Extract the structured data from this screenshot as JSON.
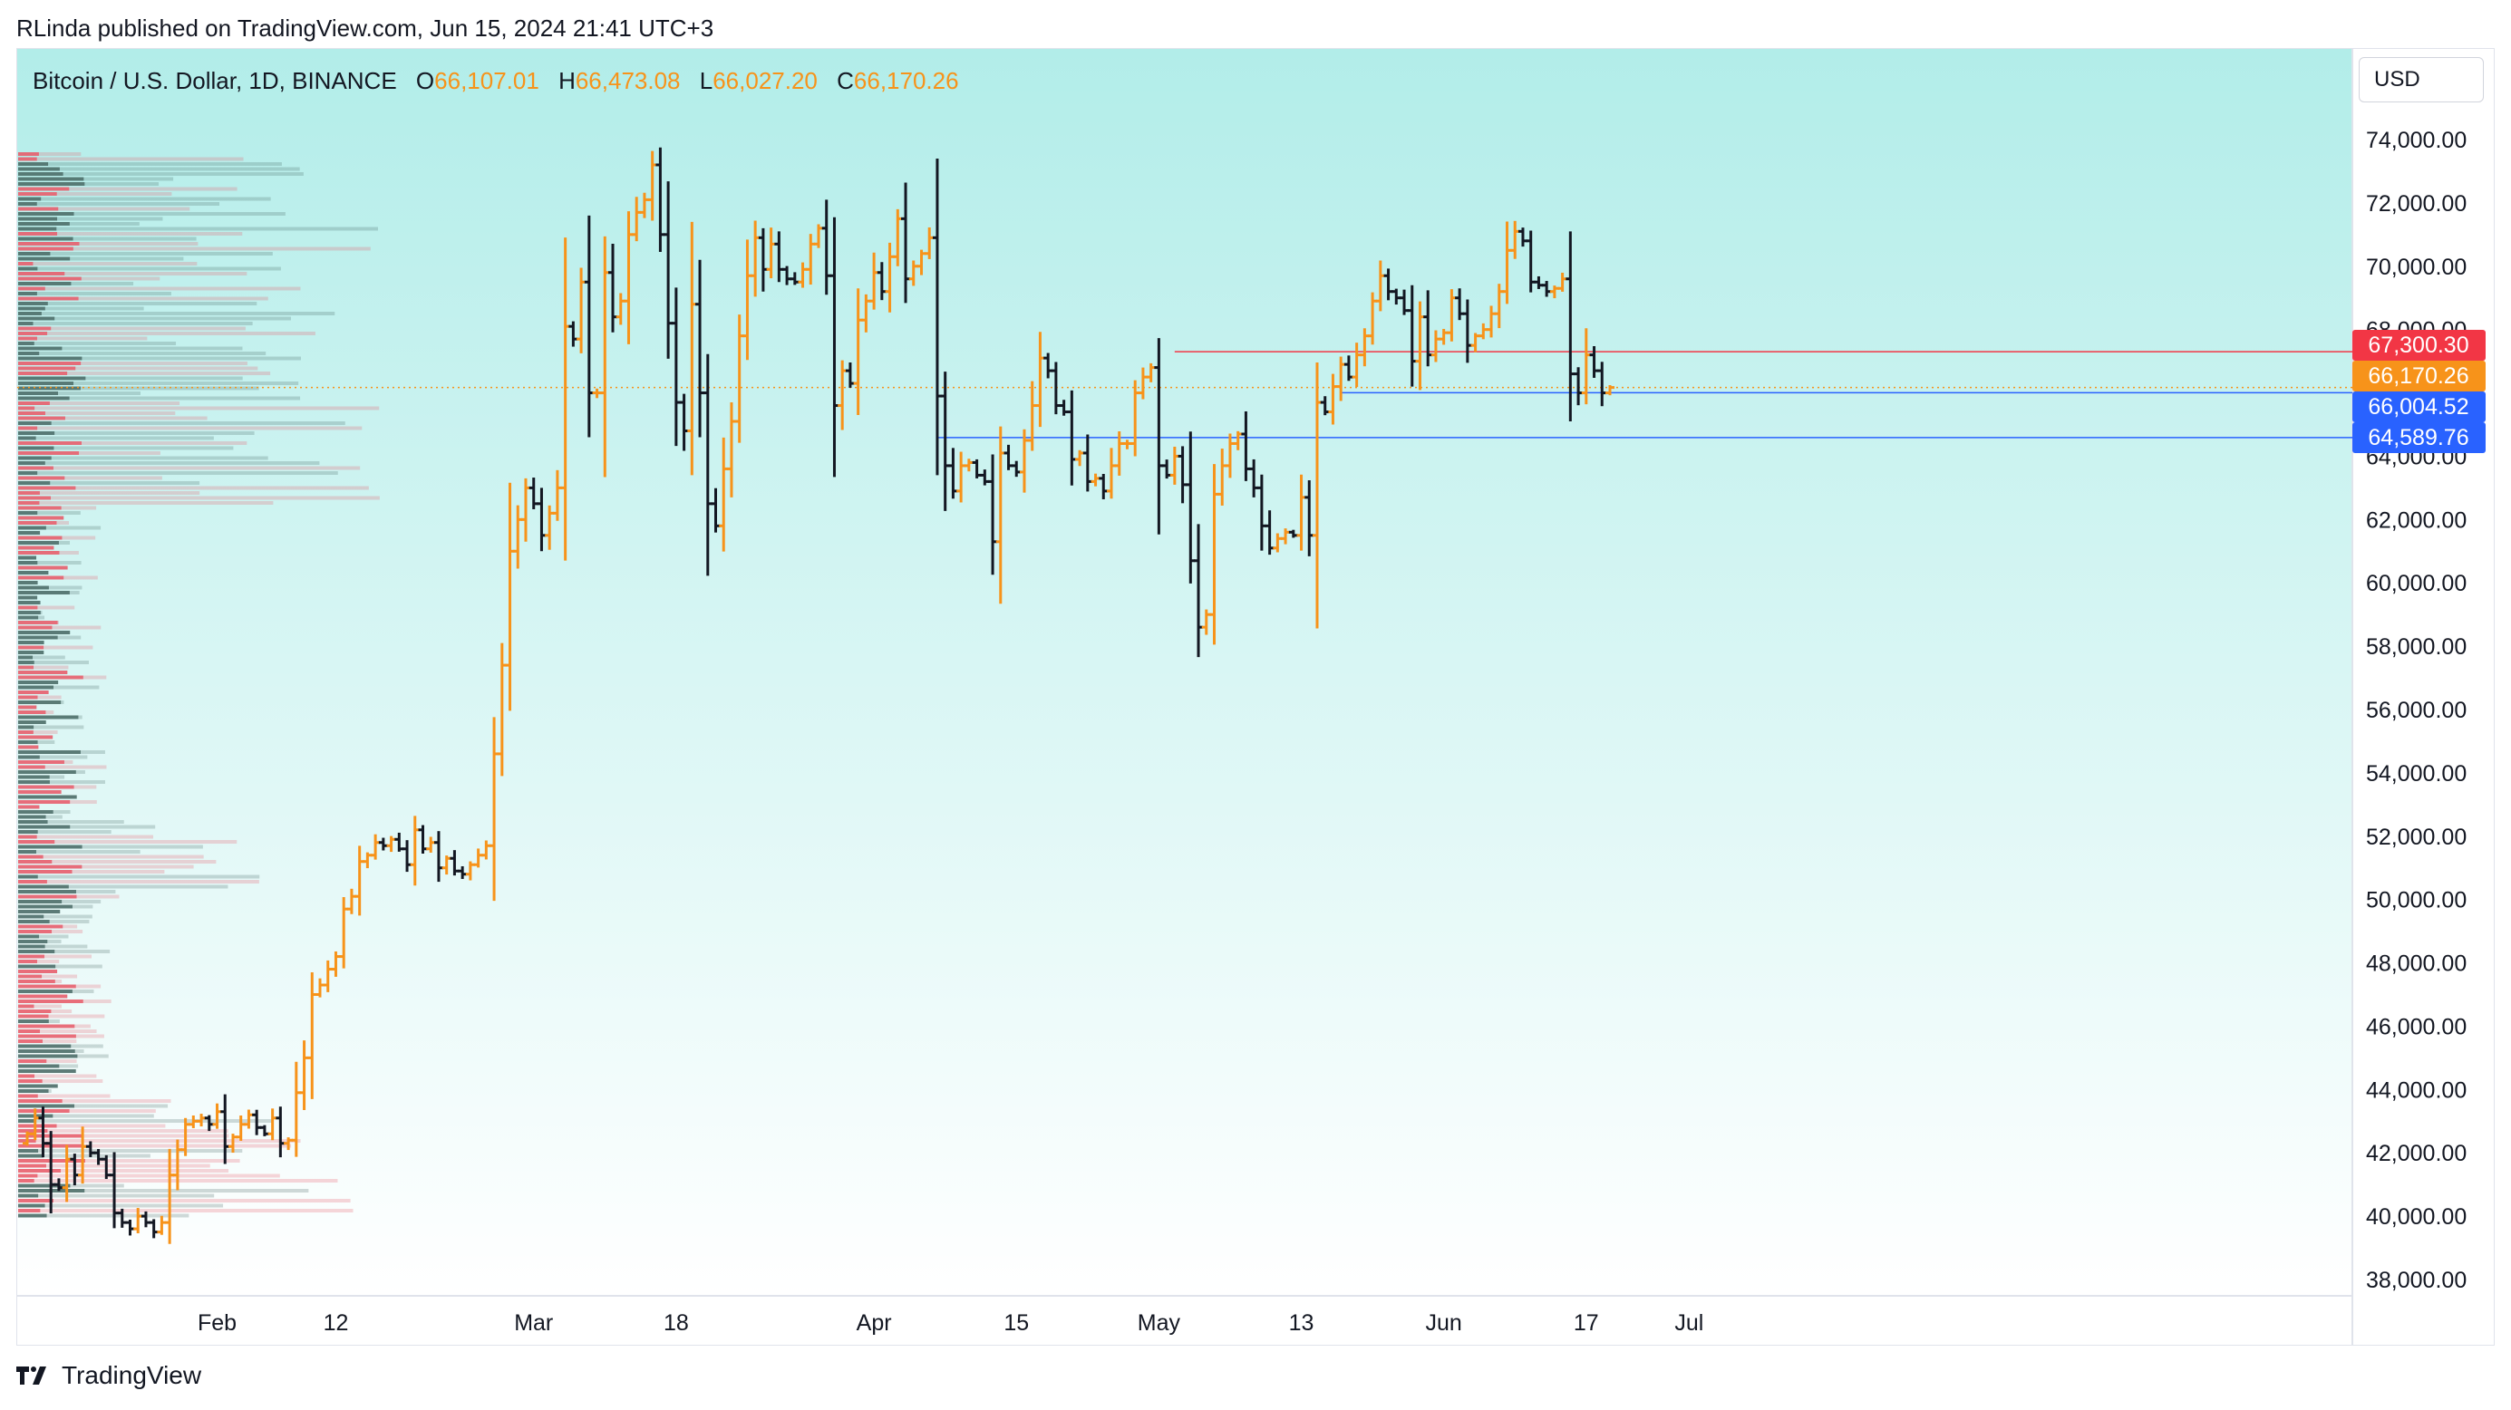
{
  "header": {
    "publisher_line": "RLinda published on TradingView.com, Jun 15, 2024 21:41 UTC+3"
  },
  "legend": {
    "symbol": "Bitcoin / U.S. Dollar, 1D, BINANCE",
    "o_label": "O",
    "o_value": "66,107.01",
    "h_label": "H",
    "h_value": "66,473.08",
    "l_label": "L",
    "l_value": "66,027.20",
    "c_label": "C",
    "c_value": "66,170.26"
  },
  "currency_button": {
    "label": "USD"
  },
  "footer": {
    "brand": "TradingView"
  },
  "colors": {
    "bull": "#f7931a",
    "bear": "#131722",
    "bg_top": "#b2ede9",
    "bg_bottom": "#ffffff",
    "red_line": "#f23645",
    "blue_line": "#2962ff",
    "volume_bear": "#4a6b66",
    "volume_bull": "#e85c6a"
  },
  "chart_data": {
    "type": "ohlc",
    "ylim": [
      36500,
      75500
    ],
    "yticks": [
      "38,000.00",
      "40,000.00",
      "42,000.00",
      "44,000.00",
      "46,000.00",
      "48,000.00",
      "50,000.00",
      "52,000.00",
      "54,000.00",
      "56,000.00",
      "58,000.00",
      "60,000.00",
      "62,000.00",
      "64,000.00",
      "66,000.00",
      "68,000.00",
      "70,000.00",
      "72,000.00",
      "74,000.00"
    ],
    "ytick_values": [
      38000,
      40000,
      42000,
      44000,
      46000,
      48000,
      50000,
      52000,
      54000,
      56000,
      58000,
      60000,
      62000,
      64000,
      66000,
      68000,
      70000,
      72000,
      74000
    ],
    "xtick_labels": [
      "Feb",
      "12",
      "Mar",
      "18",
      "Apr",
      "15",
      "May",
      "13",
      "Jun",
      "17",
      "Jul"
    ],
    "xtick_bar_index": [
      24,
      39,
      64,
      82,
      107,
      125,
      143,
      161,
      179,
      197,
      210
    ],
    "price_labels": [
      {
        "text": "67,300.30",
        "value": 67300.3,
        "color": "#f23645"
      },
      {
        "text": "66,170.26",
        "value": 66170.26,
        "color": "#f7931a"
      },
      {
        "text": "66,004.52",
        "value": 66004.52,
        "color": "#2962ff"
      },
      {
        "text": "64,589.76",
        "value": 64589.76,
        "color": "#2962ff"
      }
    ],
    "levels": [
      {
        "name": "resistance",
        "value": 67300.3,
        "from_bar": 145,
        "color": "#f23645"
      },
      {
        "name": "local-support",
        "value": 66004.52,
        "from_bar": 166,
        "color": "#2962ff"
      },
      {
        "name": "support",
        "value": 64589.76,
        "from_bar": 115,
        "color": "#2962ff"
      }
    ],
    "last_close": 66170.26,
    "closes": [
      42600,
      43100,
      42300,
      41000,
      40900,
      41800,
      41300,
      42200,
      42000,
      41800,
      41300,
      40100,
      39800,
      39600,
      40000,
      39800,
      39500,
      39800,
      41300,
      42100,
      42900,
      43000,
      43100,
      42900,
      43300,
      42200,
      42500,
      42900,
      43200,
      42800,
      42600,
      43100,
      42300,
      42400,
      43900,
      45000,
      47000,
      47300,
      47800,
      48200,
      49700,
      50100,
      51200,
      51400,
      51800,
      51700,
      51900,
      51600,
      51100,
      52200,
      51600,
      51800,
      51000,
      51300,
      50900,
      50800,
      51100,
      51400,
      51700,
      54600,
      57400,
      61000,
      62000,
      63000,
      62500,
      61500,
      62200,
      63000,
      68100,
      67700,
      69500,
      66000,
      66000,
      69800,
      68400,
      68900,
      71000,
      71700,
      72100,
      73200,
      71000,
      68200,
      65700,
      64800,
      68800,
      66000,
      62500,
      61800,
      63600,
      65100,
      67800,
      69700,
      70900,
      69900,
      70700,
      69900,
      69600,
      69500,
      69900,
      70700,
      71200,
      69700,
      65600,
      66700,
      66300,
      68300,
      68900,
      69800,
      69200,
      70300,
      71500,
      69600,
      70000,
      70400,
      70900,
      65900,
      63700,
      62900,
      63700,
      63800,
      63400,
      63200,
      61300,
      64100,
      63700,
      63500,
      64500,
      65600,
      67100,
      66700,
      65600,
      65400,
      63900,
      64100,
      63200,
      63300,
      62900,
      63700,
      64400,
      64400,
      66000,
      66500,
      66800,
      63700,
      63400,
      64000,
      63100,
      60700,
      58600,
      59000,
      62800,
      63700,
      64400,
      64700,
      63600,
      63000,
      61800,
      61100,
      61400,
      61600,
      61500,
      62700,
      61500,
      65700,
      65400,
      66200,
      66900,
      66500,
      67200,
      67800,
      68900,
      69700,
      69200,
      69000,
      68600,
      67000,
      68400,
      67200,
      67700,
      67900,
      69000,
      68500,
      67500,
      67800,
      68000,
      68500,
      69200,
      70500,
      71100,
      70800,
      69500,
      69400,
      69200,
      69300,
      69600,
      66600,
      66000,
      67200,
      66700,
      66000,
      66170.26
    ]
  }
}
